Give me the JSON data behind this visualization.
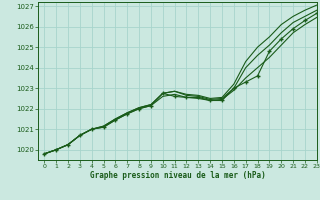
{
  "title": "Graphe pression niveau de la mer (hPa)",
  "bg_color": "#cbe8e0",
  "grid_color": "#a8d4cc",
  "line_color": "#1a5c1a",
  "text_color": "#1a5c1a",
  "xlim": [
    -0.5,
    23
  ],
  "ylim": [
    1019.5,
    1027.2
  ],
  "yticks": [
    1020,
    1021,
    1022,
    1023,
    1024,
    1025,
    1026,
    1027
  ],
  "xticks": [
    0,
    1,
    2,
    3,
    4,
    5,
    6,
    7,
    8,
    9,
    10,
    11,
    12,
    13,
    14,
    15,
    16,
    17,
    18,
    19,
    20,
    21,
    22,
    23
  ],
  "series1": {
    "x": [
      0,
      1,
      2,
      3,
      4,
      5,
      6,
      7,
      8,
      9,
      10,
      11,
      12,
      13,
      14,
      15,
      16,
      17,
      18,
      19,
      20,
      21,
      22,
      23
    ],
    "y": [
      1019.8,
      1020.0,
      1020.25,
      1020.7,
      1021.0,
      1021.15,
      1021.5,
      1021.8,
      1022.05,
      1022.2,
      1022.75,
      1022.85,
      1022.7,
      1022.65,
      1022.5,
      1022.55,
      1023.2,
      1024.3,
      1025.0,
      1025.5,
      1026.1,
      1026.5,
      1026.8,
      1027.05
    ]
  },
  "series2": {
    "x": [
      0,
      1,
      2,
      3,
      4,
      5,
      6,
      7,
      8,
      9,
      10,
      11,
      12,
      13,
      14,
      15,
      16,
      17,
      18,
      19,
      20,
      21,
      22,
      23
    ],
    "y": [
      1019.8,
      1020.0,
      1020.25,
      1020.7,
      1021.0,
      1021.15,
      1021.5,
      1021.8,
      1022.05,
      1022.2,
      1022.75,
      1022.85,
      1022.65,
      1022.6,
      1022.45,
      1022.5,
      1023.0,
      1024.0,
      1024.6,
      1025.1,
      1025.7,
      1026.2,
      1026.5,
      1026.8
    ]
  },
  "series3": {
    "x": [
      0,
      1,
      2,
      3,
      4,
      5,
      6,
      7,
      8,
      9,
      10,
      11,
      12,
      13,
      14,
      15,
      16,
      17,
      18,
      19,
      20,
      21,
      22,
      23
    ],
    "y": [
      1019.8,
      1020.0,
      1020.25,
      1020.7,
      1021.0,
      1021.1,
      1021.45,
      1021.75,
      1022.0,
      1022.15,
      1022.6,
      1022.7,
      1022.55,
      1022.5,
      1022.4,
      1022.45,
      1022.9,
      1023.5,
      1024.0,
      1024.5,
      1025.1,
      1025.7,
      1026.1,
      1026.45
    ]
  },
  "series_marker": {
    "x": [
      0,
      1,
      2,
      3,
      4,
      5,
      6,
      7,
      8,
      9,
      10,
      11,
      12,
      13,
      14,
      15,
      16,
      17,
      18,
      19,
      20,
      21,
      22,
      23
    ],
    "y": [
      1019.8,
      1020.0,
      1020.25,
      1020.7,
      1021.0,
      1021.1,
      1021.45,
      1021.75,
      1022.0,
      1022.15,
      1022.75,
      1022.6,
      1022.55,
      1022.55,
      1022.4,
      1022.4,
      1023.0,
      1023.3,
      1023.6,
      1024.8,
      1025.4,
      1025.9,
      1026.3,
      1026.65
    ]
  }
}
